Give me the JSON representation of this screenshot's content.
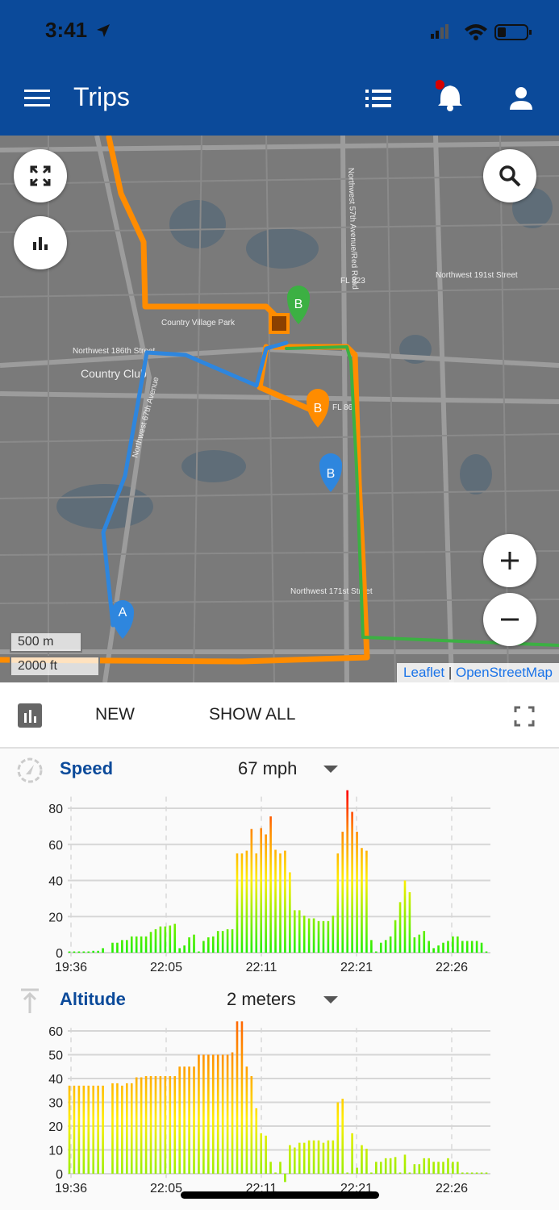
{
  "status_bar": {
    "time": "3:41"
  },
  "app_bar": {
    "title": "Trips",
    "icons": [
      "menu-icon",
      "list-icon",
      "bell-icon",
      "account-icon"
    ],
    "notification_dot_color": "#d50000"
  },
  "map": {
    "scale": {
      "metric": "500 m",
      "imperial": "2000 ft"
    },
    "attribution": {
      "leaflet": "Leaflet",
      "separator": "|",
      "osm": "OpenStreetMap"
    },
    "labels": [
      "Country Club",
      "Country Village Park",
      "Northwest 186th Street",
      "FL 823",
      "FL 860",
      "Northwest 57th Avenue/Red Road",
      "Northwest 67th Avenue",
      "Northwest 171st Street",
      "Northwest 191st Street"
    ],
    "markers": [
      {
        "label": "A",
        "color": "#2e86de"
      },
      {
        "label": "B",
        "color": "#2e86de"
      },
      {
        "label": "B",
        "color": "#ff8c00"
      },
      {
        "label": "B",
        "color": "#3cb043"
      }
    ],
    "route_colors": {
      "orange": "#ff8c00",
      "blue": "#2e86de",
      "green": "#3cb043"
    }
  },
  "toolbar": {
    "new_label": "NEW",
    "show_all_label": "SHOW ALL"
  },
  "speed": {
    "label": "Speed",
    "value": "67 mph"
  },
  "altitude": {
    "label": "Altitude",
    "value": "2 meters"
  },
  "chart_data": [
    {
      "type": "bar",
      "ylabel": "",
      "xlabel": "",
      "ylim": [
        0,
        90
      ],
      "yticks": [
        0,
        20,
        40,
        60,
        80
      ],
      "xticks": [
        "19:36",
        "22:05",
        "22:11",
        "22:21",
        "22:26"
      ],
      "grid": true,
      "values": [
        0,
        0,
        0,
        0,
        0,
        1,
        1,
        2.5,
        null,
        5.5,
        5.5,
        7,
        7,
        9,
        9,
        9,
        9,
        11.5,
        13,
        14.5,
        14.5,
        15,
        16,
        2.5,
        4,
        8.5,
        10,
        0.5,
        6.5,
        8.5,
        9,
        12,
        12,
        13,
        13,
        55,
        55,
        56.5,
        68.5,
        55,
        69,
        65.5,
        75.5,
        57,
        55,
        56.5,
        44.5,
        23.5,
        23.5,
        20.5,
        19,
        19,
        17.5,
        17.5,
        17.5,
        20.5,
        55,
        67,
        90,
        78,
        67,
        58,
        56.5,
        7,
        0,
        5.5,
        7,
        9,
        18,
        28,
        40,
        33.5,
        8.5,
        10,
        12,
        6.5,
        2.5,
        4,
        5.5,
        6.5,
        9,
        9,
        6.5,
        6.5,
        6.5,
        6.5,
        5.5,
        0
      ]
    },
    {
      "type": "bar",
      "ylabel": "",
      "xlabel": "",
      "ylim": [
        -4,
        64
      ],
      "yticks": [
        0,
        10,
        20,
        30,
        40,
        50,
        60
      ],
      "xticks": [
        "19:36",
        "22:05",
        "22:11",
        "22:21",
        "22:26"
      ],
      "grid": true,
      "values": [
        37,
        37,
        37,
        37,
        37,
        37,
        37,
        37,
        null,
        38,
        38,
        37,
        38,
        38,
        40.5,
        40.5,
        41,
        41,
        41,
        41,
        41,
        41,
        41,
        45,
        45,
        45,
        45,
        50,
        50,
        50,
        50,
        50,
        50,
        50,
        51,
        64,
        64,
        45,
        41,
        27.5,
        17,
        16,
        5,
        0,
        5,
        -3.5,
        12,
        11,
        13,
        13,
        14,
        14,
        14,
        13,
        14,
        14,
        30,
        31.5,
        0,
        17,
        2.5,
        12,
        10.5,
        0,
        5,
        5,
        6.5,
        6.5,
        7,
        0,
        8,
        0,
        4,
        4,
        6.5,
        6.5,
        5,
        5,
        5,
        6.5,
        5,
        5,
        0,
        0,
        0,
        0,
        0,
        0
      ]
    }
  ]
}
